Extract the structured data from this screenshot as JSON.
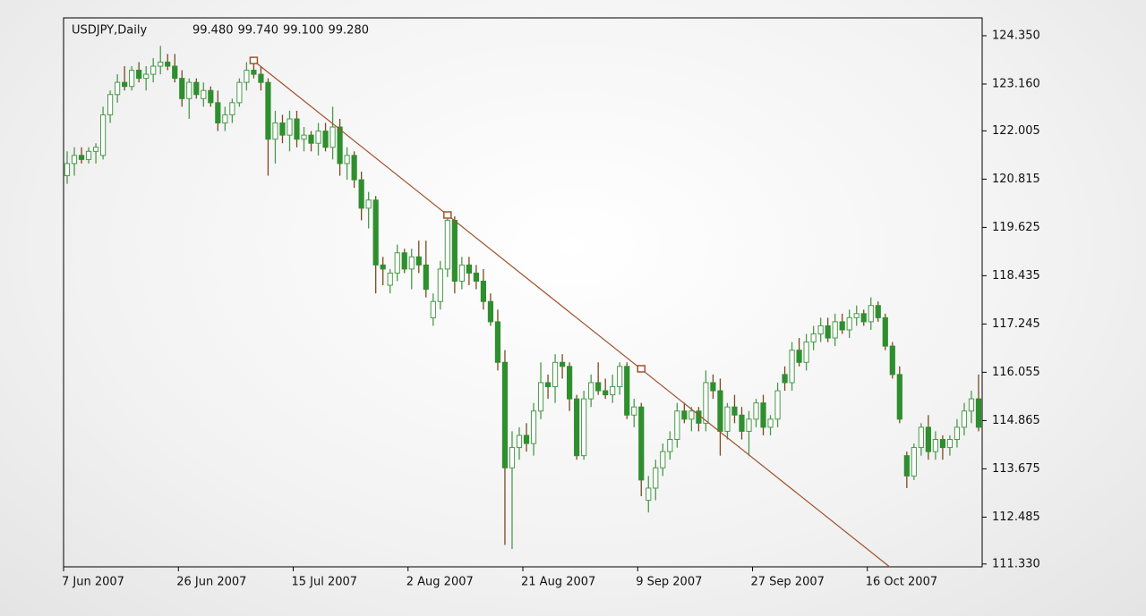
{
  "chart_data": {
    "type": "candlestick",
    "title": "USDJPY,Daily",
    "header_values": [
      "99.480",
      "99.740",
      "99.100",
      "99.280"
    ],
    "up_color": "#ffffff",
    "up_stroke": "#4a9a4a",
    "down_color": "#2f8f2f",
    "down_stroke": "#7a4a20",
    "ylim": [
      111.26,
      124.79
    ],
    "yticks": [
      {
        "value": 124.35,
        "label": "124.350"
      },
      {
        "value": 123.16,
        "label": "123.160"
      },
      122.005,
      120.815,
      119.625,
      118.435,
      117.245,
      116.055,
      114.865,
      113.675,
      112.485,
      {
        "value": 111.33,
        "label": "111.330"
      }
    ],
    "categories": [
      "7 Jun 2007",
      null,
      null,
      null,
      null,
      null,
      null,
      null,
      null,
      null,
      null,
      null,
      null,
      null,
      null,
      null,
      "26 Jun 2007",
      null,
      null,
      null,
      null,
      null,
      null,
      null,
      null,
      null,
      null,
      null,
      null,
      null,
      null,
      null,
      "15 Jul 2007",
      null,
      null,
      null,
      null,
      null,
      null,
      null,
      null,
      null,
      null,
      null,
      null,
      null,
      null,
      null,
      "2 Aug 2007",
      null,
      null,
      null,
      null,
      null,
      null,
      null,
      null,
      null,
      null,
      null,
      null,
      null,
      null,
      null,
      "21 Aug 2007",
      null,
      null,
      null,
      null,
      null,
      null,
      null,
      null,
      null,
      null,
      null,
      null,
      null,
      null,
      null,
      "9 Sep 2007",
      null,
      null,
      null,
      null,
      null,
      null,
      null,
      null,
      null,
      null,
      null,
      null,
      null,
      null,
      null,
      "27 Sep 2007",
      null,
      null,
      null,
      null,
      null,
      null,
      null,
      null,
      null,
      null,
      null,
      null,
      null,
      null,
      null,
      "16 Oct 2007",
      null,
      null,
      null,
      null,
      null,
      null,
      null,
      null,
      null,
      null,
      null,
      null,
      null,
      null,
      null
    ],
    "ohlc": [
      [
        120.9,
        121.5,
        120.7,
        121.2
      ],
      [
        121.2,
        121.6,
        120.9,
        121.4
      ],
      [
        121.4,
        121.6,
        121.2,
        121.3
      ],
      [
        121.3,
        121.6,
        121.2,
        121.5
      ],
      [
        121.5,
        121.7,
        121.2,
        121.6
      ],
      [
        121.4,
        122.6,
        121.3,
        122.4
      ],
      [
        122.4,
        123.0,
        122.2,
        122.9
      ],
      [
        122.9,
        123.4,
        122.7,
        123.2
      ],
      [
        123.2,
        123.6,
        123.0,
        123.1
      ],
      [
        123.1,
        123.6,
        123.0,
        123.5
      ],
      [
        123.5,
        123.7,
        123.2,
        123.3
      ],
      [
        123.3,
        123.6,
        123.0,
        123.4
      ],
      [
        123.4,
        123.8,
        123.2,
        123.6
      ],
      [
        123.6,
        124.1,
        123.4,
        123.7
      ],
      [
        123.7,
        123.9,
        123.5,
        123.6
      ],
      [
        123.6,
        123.9,
        123.2,
        123.3
      ],
      [
        123.3,
        123.5,
        122.6,
        122.8
      ],
      [
        122.8,
        123.3,
        122.3,
        123.2
      ],
      [
        123.2,
        123.3,
        122.8,
        122.9
      ],
      [
        122.8,
        123.2,
        122.6,
        123.0
      ],
      [
        123.0,
        123.1,
        122.6,
        122.7
      ],
      [
        122.7,
        123.0,
        122.0,
        122.2
      ],
      [
        122.2,
        122.6,
        122.0,
        122.4
      ],
      [
        122.4,
        122.8,
        122.2,
        122.7
      ],
      [
        122.7,
        123.3,
        122.6,
        123.2
      ],
      [
        123.2,
        123.7,
        123.0,
        123.5
      ],
      [
        123.5,
        123.8,
        123.3,
        123.4
      ],
      [
        123.4,
        123.6,
        123.0,
        123.2
      ],
      [
        123.2,
        123.3,
        120.9,
        121.8
      ],
      [
        121.8,
        122.5,
        121.2,
        122.2
      ],
      [
        122.2,
        122.4,
        121.7,
        121.9
      ],
      [
        121.9,
        122.5,
        121.5,
        122.3
      ],
      [
        122.3,
        122.5,
        121.6,
        121.8
      ],
      [
        121.8,
        122.1,
        121.5,
        121.9
      ],
      [
        121.9,
        122.0,
        121.5,
        121.7
      ],
      [
        121.7,
        122.2,
        121.4,
        122.0
      ],
      [
        122.0,
        122.2,
        121.5,
        121.6
      ],
      [
        121.6,
        122.6,
        121.3,
        122.1
      ],
      [
        122.1,
        122.3,
        120.9,
        121.2
      ],
      [
        121.2,
        121.6,
        120.8,
        121.4
      ],
      [
        121.4,
        121.5,
        120.6,
        120.8
      ],
      [
        120.8,
        121.0,
        119.8,
        120.1
      ],
      [
        120.1,
        120.5,
        119.6,
        120.3
      ],
      [
        120.3,
        120.4,
        118.0,
        118.7
      ],
      [
        118.7,
        118.9,
        118.2,
        118.6
      ],
      [
        118.2,
        118.6,
        118.0,
        118.5
      ],
      [
        118.5,
        119.2,
        118.3,
        119.0
      ],
      [
        119.0,
        119.1,
        118.5,
        118.6
      ],
      [
        118.6,
        119.1,
        118.1,
        118.9
      ],
      [
        118.9,
        119.3,
        118.5,
        118.7
      ],
      [
        118.7,
        119.3,
        117.9,
        118.1
      ],
      [
        117.4,
        118.0,
        117.2,
        117.8
      ],
      [
        117.8,
        118.8,
        117.6,
        118.6
      ],
      [
        118.6,
        120.0,
        118.4,
        119.8
      ],
      [
        119.8,
        119.9,
        118.0,
        118.3
      ],
      [
        118.3,
        118.9,
        118.1,
        118.7
      ],
      [
        118.7,
        118.9,
        118.2,
        118.5
      ],
      [
        118.5,
        118.7,
        118.1,
        118.3
      ],
      [
        118.3,
        118.6,
        117.6,
        117.8
      ],
      [
        117.8,
        118.0,
        117.2,
        117.3
      ],
      [
        117.3,
        117.6,
        116.1,
        116.3
      ],
      [
        116.3,
        116.6,
        111.8,
        113.7
      ],
      [
        113.7,
        114.6,
        111.7,
        114.2
      ],
      [
        114.2,
        114.7,
        113.9,
        114.5
      ],
      [
        114.5,
        114.8,
        114.1,
        114.3
      ],
      [
        114.3,
        115.3,
        114.0,
        115.1
      ],
      [
        115.1,
        116.3,
        114.9,
        115.8
      ],
      [
        115.8,
        116.0,
        115.4,
        115.7
      ],
      [
        115.7,
        116.5,
        115.3,
        116.3
      ],
      [
        116.3,
        116.5,
        115.9,
        116.2
      ],
      [
        116.2,
        116.3,
        115.1,
        115.4
      ],
      [
        115.4,
        115.5,
        113.9,
        114.0
      ],
      [
        114.0,
        115.6,
        113.9,
        115.4
      ],
      [
        115.4,
        116.0,
        115.2,
        115.8
      ],
      [
        115.8,
        116.3,
        115.5,
        115.6
      ],
      [
        115.6,
        115.9,
        115.4,
        115.5
      ],
      [
        115.5,
        116.0,
        115.3,
        115.7
      ],
      [
        115.7,
        116.3,
        115.5,
        116.2
      ],
      [
        116.2,
        116.3,
        114.9,
        115.0
      ],
      [
        115.0,
        115.4,
        114.7,
        115.2
      ],
      [
        115.2,
        115.3,
        113.0,
        113.4
      ],
      [
        112.9,
        113.5,
        112.6,
        113.2
      ],
      [
        113.2,
        113.9,
        112.9,
        113.7
      ],
      [
        113.7,
        114.3,
        113.5,
        114.1
      ],
      [
        114.1,
        114.6,
        113.9,
        114.4
      ],
      [
        114.4,
        115.3,
        114.2,
        115.1
      ],
      [
        115.1,
        115.3,
        114.8,
        114.9
      ],
      [
        114.9,
        115.2,
        114.6,
        115.1
      ],
      [
        115.1,
        115.2,
        114.6,
        114.8
      ],
      [
        114.8,
        116.1,
        114.6,
        115.8
      ],
      [
        115.8,
        116.0,
        115.4,
        115.6
      ],
      [
        115.6,
        115.9,
        114.0,
        114.6
      ],
      [
        114.6,
        115.3,
        114.4,
        115.2
      ],
      [
        115.2,
        115.5,
        114.8,
        115.0
      ],
      [
        115.0,
        115.2,
        114.4,
        114.6
      ],
      [
        114.6,
        115.1,
        114.0,
        114.9
      ],
      [
        114.9,
        115.4,
        114.7,
        115.3
      ],
      [
        115.3,
        115.5,
        114.5,
        114.7
      ],
      [
        114.7,
        115.0,
        114.5,
        114.9
      ],
      [
        114.9,
        115.8,
        114.7,
        115.6
      ],
      [
        116.0,
        116.2,
        115.6,
        115.8
      ],
      [
        115.8,
        116.8,
        115.6,
        116.6
      ],
      [
        116.6,
        116.9,
        116.2,
        116.3
      ],
      [
        116.3,
        117.0,
        116.1,
        116.8
      ],
      [
        116.8,
        117.2,
        116.6,
        117.0
      ],
      [
        117.0,
        117.4,
        116.8,
        117.2
      ],
      [
        117.2,
        117.4,
        116.8,
        116.9
      ],
      [
        116.9,
        117.5,
        116.7,
        117.3
      ],
      [
        117.3,
        117.5,
        117.0,
        117.1
      ],
      [
        117.1,
        117.6,
        116.9,
        117.4
      ],
      [
        117.4,
        117.7,
        117.2,
        117.5
      ],
      [
        117.5,
        117.6,
        117.2,
        117.3
      ],
      [
        117.3,
        117.9,
        117.1,
        117.7
      ],
      [
        117.7,
        117.8,
        117.3,
        117.4
      ],
      [
        117.4,
        117.5,
        116.6,
        116.7
      ],
      [
        116.7,
        116.8,
        115.9,
        116.0
      ],
      [
        116.0,
        116.2,
        114.8,
        114.9
      ],
      [
        114.0,
        114.1,
        113.2,
        113.5
      ],
      [
        113.5,
        114.3,
        113.4,
        114.2
      ],
      [
        114.2,
        114.8,
        114.0,
        114.7
      ],
      [
        114.7,
        115.0,
        113.9,
        114.1
      ],
      [
        114.1,
        114.6,
        113.9,
        114.4
      ],
      [
        114.4,
        114.5,
        113.9,
        114.2
      ],
      [
        114.2,
        114.5,
        114.0,
        114.4
      ],
      [
        114.4,
        114.9,
        114.2,
        114.7
      ],
      [
        114.7,
        115.3,
        114.5,
        115.1
      ],
      [
        115.1,
        115.6,
        114.8,
        115.4
      ],
      [
        115.4,
        116.0,
        114.6,
        114.7
      ]
    ],
    "trendline": {
      "color": "#a0522d",
      "points": [
        [
          26,
          123.73
        ],
        [
          53,
          119.92
        ],
        [
          80,
          116.13
        ]
      ]
    }
  }
}
